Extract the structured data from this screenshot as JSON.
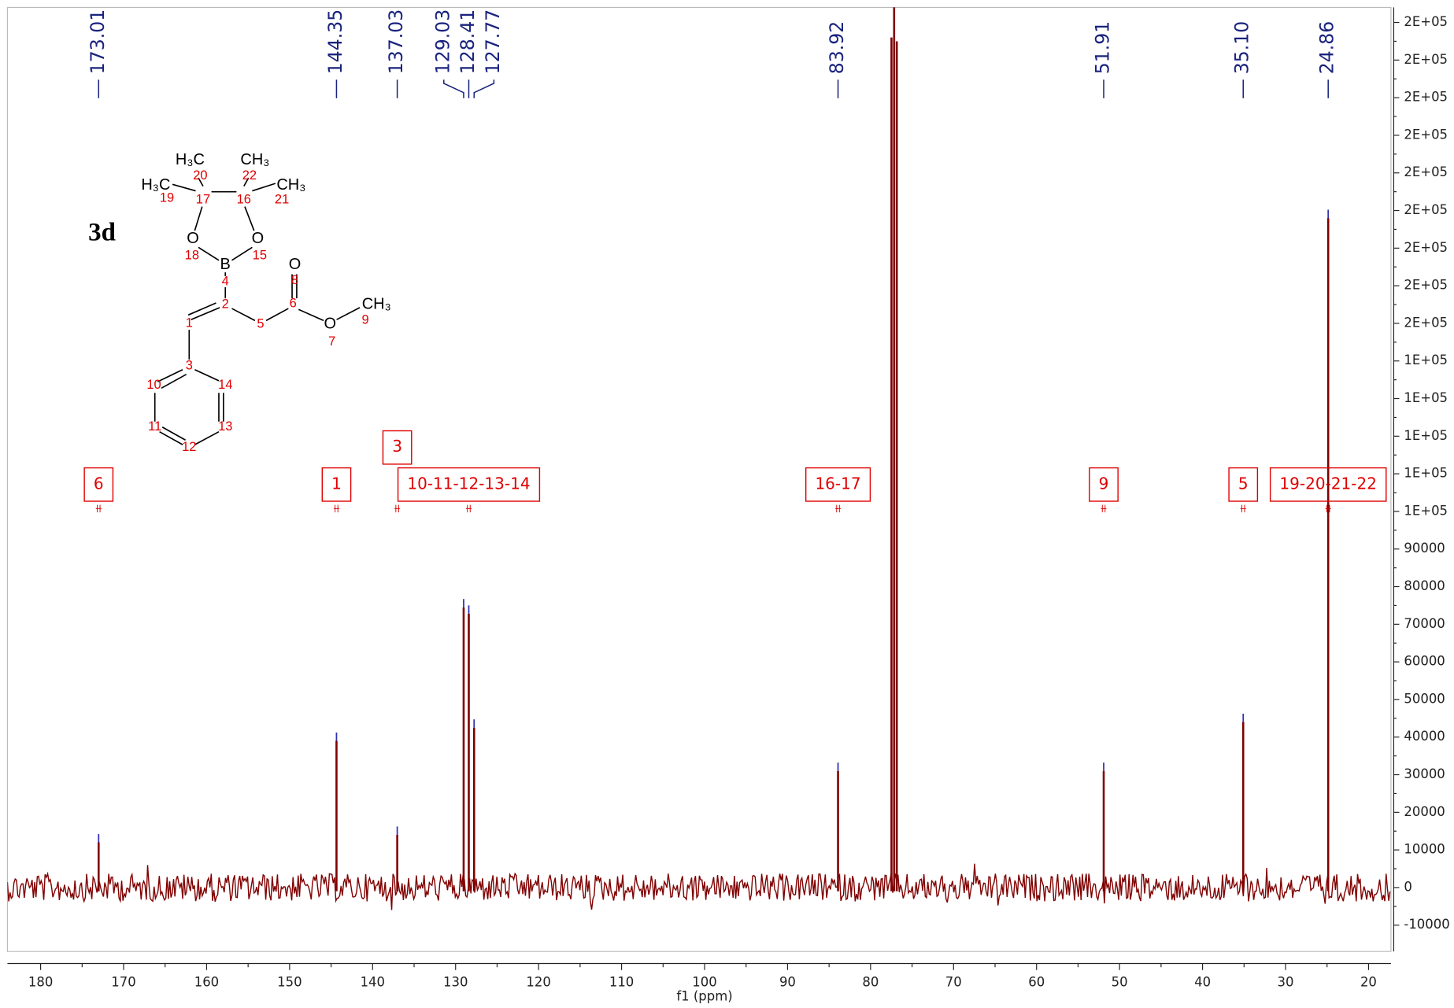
{
  "chart_data": {
    "type": "nmr",
    "x": [
      173.01,
      144.35,
      137.03,
      129.03,
      128.41,
      127.77,
      83.92,
      51.91,
      35.1,
      24.86
    ],
    "x_labels": [
      "173.01",
      "144.35",
      "137.03",
      "129.03",
      "128.41",
      "127.77",
      "83.92",
      "51.91",
      "35.10",
      "24.86"
    ],
    "values": [
      12000,
      39000,
      14000,
      74500,
      72800,
      42500,
      31000,
      31000,
      44000,
      178000
    ],
    "color": "#800000",
    "solvent": {
      "x": [
        77.48,
        77.16,
        76.84
      ],
      "values": [
        226000,
        260000,
        225000
      ]
    },
    "xlabel": "f1 (ppm)",
    "xlim": [
      184,
      17.3
    ],
    "ylim": [
      -17000,
      234000
    ],
    "xticks": [
      180,
      170,
      160,
      150,
      140,
      130,
      120,
      110,
      100,
      90,
      80,
      70,
      60,
      50,
      40,
      30,
      20
    ],
    "yticks": [
      -10000,
      0,
      10000,
      20000,
      30000,
      40000,
      50000,
      60000,
      70000,
      80000,
      90000,
      {
        "value": 100000,
        "label": "1E+05"
      },
      {
        "value": 110000,
        "label": "1E+05"
      },
      {
        "value": 120000,
        "label": "1E+05"
      },
      {
        "value": 130000,
        "label": "1E+05"
      },
      {
        "value": 140000,
        "label": "1E+05"
      },
      {
        "value": 150000,
        "label": "2E+05"
      },
      {
        "value": 160000,
        "label": "2E+05"
      },
      {
        "value": 170000,
        "label": "2E+05"
      },
      {
        "value": 180000,
        "label": "2E+05"
      },
      {
        "value": 190000,
        "label": "2E+05"
      },
      {
        "value": 200000,
        "label": "2E+05"
      },
      {
        "value": 210000,
        "label": "2E+05"
      },
      {
        "value": 220000,
        "label": "2E+05"
      },
      {
        "value": 230000,
        "label": "2E+05"
      }
    ],
    "annotations": [
      {
        "text": "6",
        "x": 173.01
      },
      {
        "text": "1",
        "x": 144.35
      },
      {
        "text": "3",
        "x": 137.03
      },
      {
        "text": "10-11-12-13-14",
        "x": 128.41
      },
      {
        "text": "16-17",
        "x": 83.92
      },
      {
        "text": "9",
        "x": 51.91
      },
      {
        "text": "5",
        "x": 35.1
      },
      {
        "text": "19-20-21-22",
        "x": 24.86
      }
    ],
    "structure": {
      "label": "3d",
      "atoms": [
        "H₃C",
        "CH₃",
        "H₃C",
        "CH₃",
        "O",
        "O",
        "B",
        "O",
        "O",
        "CH₃"
      ],
      "numbers": [
        "20",
        "22",
        "19",
        "17",
        "16",
        "21",
        "18",
        "15",
        "4",
        "8",
        "2",
        "6",
        "5",
        "9",
        "7",
        "1",
        "3",
        "10",
        "14",
        "11",
        "13",
        "12"
      ]
    }
  }
}
